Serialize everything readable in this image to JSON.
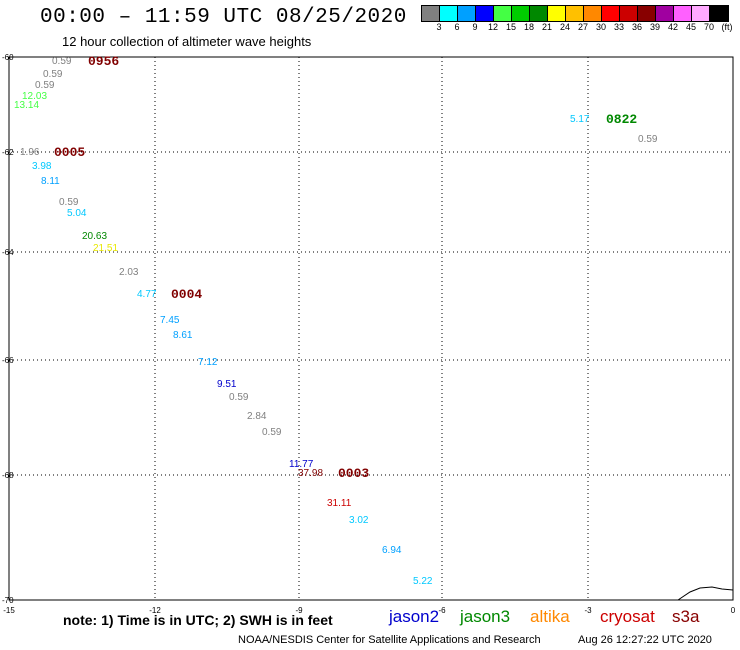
{
  "header": {
    "title": "00:00 – 11:59 UTC 08/25/2020",
    "subtitle": "12 hour collection of altimeter wave heights"
  },
  "legend": {
    "colors": [
      "#808080",
      "#00ffff",
      "#00a0ff",
      "#0000ff",
      "#44ff44",
      "#00cc00",
      "#008800",
      "#ffff00",
      "#ffc000",
      "#ff8800",
      "#ff0000",
      "#cc0000",
      "#880000",
      "#a000a0",
      "#ff60ff",
      "#ffaaff",
      "#000000"
    ],
    "labels": [
      "3",
      "6",
      "9",
      "12",
      "15",
      "18",
      "21",
      "24",
      "27",
      "30",
      "33",
      "36",
      "39",
      "42",
      "45",
      "70",
      "(ft)"
    ]
  },
  "axes": {
    "lat_labels": [
      "-60",
      "-62",
      "-64",
      "-66",
      "-68",
      "-70"
    ],
    "lon_labels": [
      "-15",
      "-12",
      "-9",
      "-6",
      "-3",
      "0"
    ]
  },
  "readings": [
    {
      "text": "0.59",
      "color": "#808080"
    },
    {
      "text": "0956",
      "color": "#800000",
      "kind": "time"
    },
    {
      "text": "0.59",
      "color": "#808080"
    },
    {
      "text": "0.59",
      "color": "#808080"
    },
    {
      "text": "12.03",
      "color": "#44ff44"
    },
    {
      "text": "13.14",
      "color": "#44ff44"
    },
    {
      "text": "1.96",
      "color": "#808080"
    },
    {
      "text": "0005",
      "color": "#800000",
      "kind": "time"
    },
    {
      "text": "3.98",
      "color": "#00c8ff"
    },
    {
      "text": "8.11",
      "color": "#00a0ff"
    },
    {
      "text": "0.59",
      "color": "#808080"
    },
    {
      "text": "5.04",
      "color": "#00c8ff"
    },
    {
      "text": "20.63",
      "color": "#008800"
    },
    {
      "text": "21.51",
      "color": "#e8e800"
    },
    {
      "text": "2.03",
      "color": "#808080"
    },
    {
      "text": "4.77",
      "color": "#00c8ff"
    },
    {
      "text": "0004",
      "color": "#800000",
      "kind": "time"
    },
    {
      "text": "7.45",
      "color": "#00a0ff"
    },
    {
      "text": "8.61",
      "color": "#00a0ff"
    },
    {
      "text": "7.12",
      "color": "#00a0ff"
    },
    {
      "text": "9.51",
      "color": "#0000cc"
    },
    {
      "text": "0.59",
      "color": "#808080"
    },
    {
      "text": "2.84",
      "color": "#808080"
    },
    {
      "text": "0.59",
      "color": "#808080"
    },
    {
      "text": "11.77",
      "color": "#0000cc"
    },
    {
      "text": "37.98",
      "color": "#800000"
    },
    {
      "text": "0003",
      "color": "#800000",
      "kind": "time"
    },
    {
      "text": "31.11",
      "color": "#cc0000"
    },
    {
      "text": "3.02",
      "color": "#00c8ff"
    },
    {
      "text": "6.94",
      "color": "#00a0ff"
    },
    {
      "text": "5.22",
      "color": "#00c8ff"
    },
    {
      "text": "5.17",
      "color": "#00c8ff"
    },
    {
      "text": "0822",
      "color": "#008800",
      "kind": "time"
    },
    {
      "text": "0.59",
      "color": "#808080"
    }
  ],
  "footer": {
    "note": "note: 1) Time is in UTC; 2) SWH is in feet",
    "satellites": [
      {
        "name": "jason2",
        "color": "#0000cc"
      },
      {
        "name": "jason3",
        "color": "#008800"
      },
      {
        "name": "altika",
        "color": "#ff8800"
      },
      {
        "name": "cryosat",
        "color": "#cc0000"
      },
      {
        "name": "s3a",
        "color": "#880000"
      }
    ],
    "credit": "NOAA/NESDIS Center for Satellite Applications and Research",
    "timestamp": "Aug 26 12:27:22 UTC 2020"
  }
}
